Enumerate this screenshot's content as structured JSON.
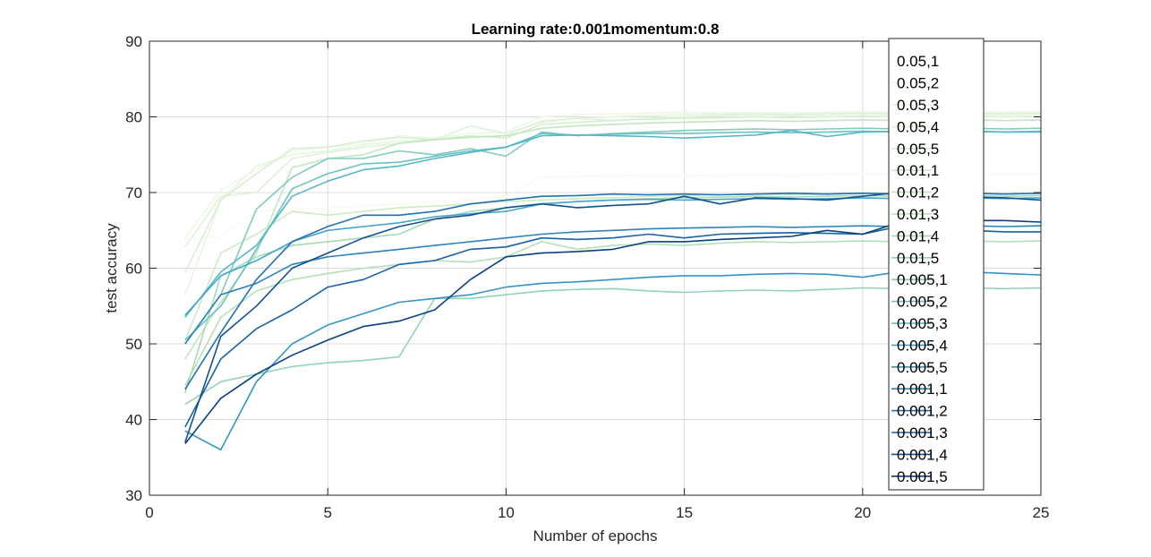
{
  "chart_data": {
    "type": "line",
    "title": "Learning rate:0.001momentum:0.8",
    "xlabel": "Number of epochs",
    "ylabel": "test accuracy",
    "xlim": [
      0,
      25
    ],
    "ylim": [
      30,
      90
    ],
    "xticks": [
      0,
      5,
      10,
      15,
      20,
      25
    ],
    "yticks": [
      30,
      40,
      50,
      60,
      70,
      80,
      90
    ],
    "grid": true,
    "legend_position": "top-right",
    "x": [
      1,
      2,
      3,
      4,
      5,
      6,
      7,
      8,
      9,
      10,
      11,
      12,
      13,
      14,
      15,
      16,
      17,
      18,
      19,
      20,
      21,
      22,
      23,
      24,
      25
    ],
    "series": [
      {
        "name": "0.05,1",
        "color": "#f7fcf0",
        "values": [
          63.8,
          64.2,
          67.5,
          67.8,
          68.0,
          68.2,
          68.5,
          68.8,
          69.0,
          69.5,
          72.0,
          72.1,
          72.2,
          72.3,
          72.2,
          72.3,
          72.4,
          72.3,
          72.4,
          72.5,
          72.4,
          72.5,
          72.5,
          72.4,
          72.5
        ]
      },
      {
        "name": "0.05,2",
        "color": "#eef8e8",
        "values": [
          64.0,
          70.3,
          73.0,
          75.5,
          76.0,
          76.5,
          77.5,
          77.2,
          77.8,
          78.0,
          80.0,
          80.3,
          80.4,
          80.5,
          80.6,
          80.5,
          80.6,
          80.5,
          80.6,
          80.7,
          80.6,
          80.7,
          80.7,
          80.6,
          80.7
        ]
      },
      {
        "name": "0.05,3",
        "color": "#e6f5e0",
        "values": [
          56.5,
          69.0,
          73.5,
          75.0,
          75.5,
          76.3,
          76.8,
          77.0,
          77.3,
          77.5,
          79.5,
          79.8,
          80.0,
          80.2,
          80.3,
          80.4,
          80.5,
          80.4,
          80.5,
          80.6,
          80.5,
          80.6,
          80.6,
          80.5,
          80.6
        ]
      },
      {
        "name": "0.05,4",
        "color": "#def2d8",
        "values": [
          62.8,
          69.5,
          70.0,
          74.5,
          75.3,
          76.0,
          76.5,
          77.0,
          78.8,
          77.8,
          79.3,
          79.8,
          79.5,
          79.8,
          80.0,
          80.2,
          80.3,
          80.2,
          80.3,
          80.4,
          80.3,
          80.4,
          80.4,
          80.3,
          80.4
        ]
      },
      {
        "name": "0.05,5",
        "color": "#d6efd0",
        "values": [
          59.5,
          69.0,
          72.5,
          75.8,
          76.0,
          76.8,
          77.3,
          77.0,
          77.5,
          77.2,
          79.0,
          79.3,
          79.5,
          79.7,
          79.8,
          79.9,
          80.0,
          79.9,
          80.0,
          80.1,
          80.0,
          80.1,
          80.1,
          80.0,
          80.1
        ]
      },
      {
        "name": "0.01,1",
        "color": "#cdebc5",
        "values": [
          50.5,
          62.0,
          64.5,
          67.5,
          67.0,
          67.5,
          68.0,
          68.2,
          68.5,
          68.8,
          69.0,
          69.2,
          69.3,
          69.5,
          69.6,
          69.7,
          69.8,
          69.7,
          69.8,
          69.9,
          69.8,
          69.9,
          69.9,
          69.8,
          69.9
        ]
      },
      {
        "name": "0.01,2",
        "color": "#c2e6bd",
        "values": [
          48.0,
          55.5,
          62.0,
          73.3,
          74.5,
          75.0,
          76.5,
          77.0,
          77.3,
          77.5,
          78.5,
          78.8,
          79.0,
          79.2,
          79.3,
          79.4,
          79.5,
          79.4,
          79.5,
          79.6,
          79.5,
          79.6,
          79.6,
          79.5,
          79.6
        ]
      },
      {
        "name": "0.01,3",
        "color": "#b5e1b8",
        "values": [
          44.5,
          53.5,
          57.0,
          58.5,
          59.3,
          60.0,
          60.5,
          61.0,
          60.8,
          61.5,
          63.5,
          62.5,
          63.0,
          63.2,
          63.0,
          63.3,
          63.5,
          63.4,
          63.5,
          63.6,
          63.5,
          63.6,
          63.6,
          63.5,
          63.6
        ]
      },
      {
        "name": "0.01,4",
        "color": "#a6dbb6",
        "values": [
          43.5,
          59.0,
          61.5,
          63.0,
          63.5,
          64.0,
          64.5,
          66.5,
          67.5,
          68.0,
          68.5,
          68.8,
          69.0,
          69.2,
          69.3,
          69.4,
          69.5,
          69.4,
          69.5,
          69.6,
          69.5,
          69.6,
          69.6,
          69.5,
          69.6
        ]
      },
      {
        "name": "0.01,5",
        "color": "#94d4b6",
        "values": [
          42.0,
          45.0,
          46.0,
          47.0,
          47.5,
          47.8,
          48.3,
          56.0,
          56.0,
          56.5,
          57.0,
          57.2,
          57.3,
          57.0,
          56.8,
          57.0,
          57.1,
          57.0,
          57.2,
          57.4,
          57.3,
          57.4,
          57.4,
          57.3,
          57.4
        ]
      },
      {
        "name": "0.005,1",
        "color": "#80ccbd",
        "values": [
          50.0,
          56.5,
          67.8,
          72.0,
          74.5,
          74.5,
          75.5,
          75.0,
          75.8,
          74.8,
          78.0,
          77.5,
          77.8,
          78.0,
          78.2,
          78.3,
          78.4,
          78.3,
          78.4,
          78.5,
          78.4,
          78.5,
          78.5,
          78.4,
          78.5
        ]
      },
      {
        "name": "0.005,2",
        "color": "#6bc2c4",
        "values": [
          50.5,
          55.0,
          62.5,
          70.5,
          72.5,
          73.8,
          74.0,
          74.8,
          75.5,
          76.0,
          77.8,
          77.6,
          77.7,
          77.8,
          77.8,
          77.9,
          78.0,
          77.9,
          78.0,
          78.1,
          78.0,
          78.1,
          78.1,
          78.0,
          78.1
        ]
      },
      {
        "name": "0.005,3",
        "color": "#56b6c9",
        "values": [
          53.5,
          59.5,
          63.0,
          69.5,
          71.5,
          73.0,
          73.5,
          74.5,
          75.3,
          76.0,
          77.5,
          77.6,
          77.5,
          77.4,
          77.2,
          77.4,
          77.6,
          78.2,
          77.4,
          78.0,
          78.1,
          78.0,
          78.1,
          78.0,
          78.0
        ]
      },
      {
        "name": "0.005,4",
        "color": "#45a5cc",
        "values": [
          53.8,
          59.0,
          61.0,
          63.5,
          65.0,
          65.5,
          66.0,
          66.8,
          67.2,
          67.5,
          68.5,
          68.8,
          69.0,
          69.1,
          69.0,
          69.1,
          69.2,
          69.1,
          69.2,
          69.3,
          69.2,
          69.3,
          69.3,
          69.2,
          69.3
        ]
      },
      {
        "name": "0.005,5",
        "color": "#3694c5",
        "values": [
          38.5,
          36.0,
          45.0,
          50.0,
          52.5,
          54.0,
          55.5,
          56.0,
          56.5,
          57.5,
          58.0,
          58.2,
          58.5,
          58.8,
          59.0,
          59.0,
          59.2,
          59.3,
          59.2,
          58.8,
          59.5,
          59.6,
          59.5,
          59.3,
          59.1
        ]
      },
      {
        "name": "0.001,1",
        "color": "#2b83bb",
        "values": [
          50.0,
          56.5,
          58.0,
          60.5,
          61.5,
          62.0,
          62.5,
          63.0,
          63.5,
          64.0,
          64.5,
          64.8,
          65.0,
          65.2,
          65.3,
          65.4,
          65.5,
          65.4,
          65.5,
          65.6,
          65.5,
          65.6,
          65.6,
          65.5,
          65.6
        ]
      },
      {
        "name": "0.001,2",
        "color": "#2272b1",
        "values": [
          44.0,
          51.5,
          58.5,
          63.5,
          65.5,
          67.0,
          67.0,
          67.5,
          68.5,
          69.0,
          69.5,
          69.6,
          69.8,
          69.7,
          69.8,
          69.7,
          69.8,
          69.9,
          69.8,
          69.9,
          69.8,
          69.9,
          69.9,
          69.8,
          69.9
        ]
      },
      {
        "name": "0.001,3",
        "color": "#1962a4",
        "values": [
          39.0,
          48.0,
          52.0,
          54.5,
          57.5,
          58.5,
          60.5,
          61.0,
          62.5,
          62.8,
          64.0,
          63.8,
          64.0,
          64.5,
          64.0,
          64.5,
          64.6,
          64.7,
          64.6,
          64.5,
          65.5,
          65.0,
          65.0,
          64.8,
          64.8
        ]
      },
      {
        "name": "0.001,4",
        "color": "#11528f",
        "values": [
          37.0,
          51.0,
          55.0,
          60.0,
          62.0,
          64.0,
          65.5,
          66.5,
          67.0,
          68.0,
          68.5,
          68.0,
          68.3,
          68.5,
          69.5,
          68.5,
          69.3,
          69.2,
          69.0,
          69.5,
          70.0,
          69.5,
          69.4,
          69.3,
          69.0
        ]
      },
      {
        "name": "0.001,5",
        "color": "#084081",
        "values": [
          36.8,
          42.8,
          46.0,
          48.5,
          50.5,
          52.3,
          53.0,
          54.5,
          58.5,
          61.5,
          62.0,
          62.2,
          62.5,
          63.5,
          63.5,
          63.8,
          64.0,
          64.2,
          65.0,
          64.5,
          66.0,
          66.2,
          66.3,
          66.3,
          66.1
        ]
      }
    ]
  }
}
